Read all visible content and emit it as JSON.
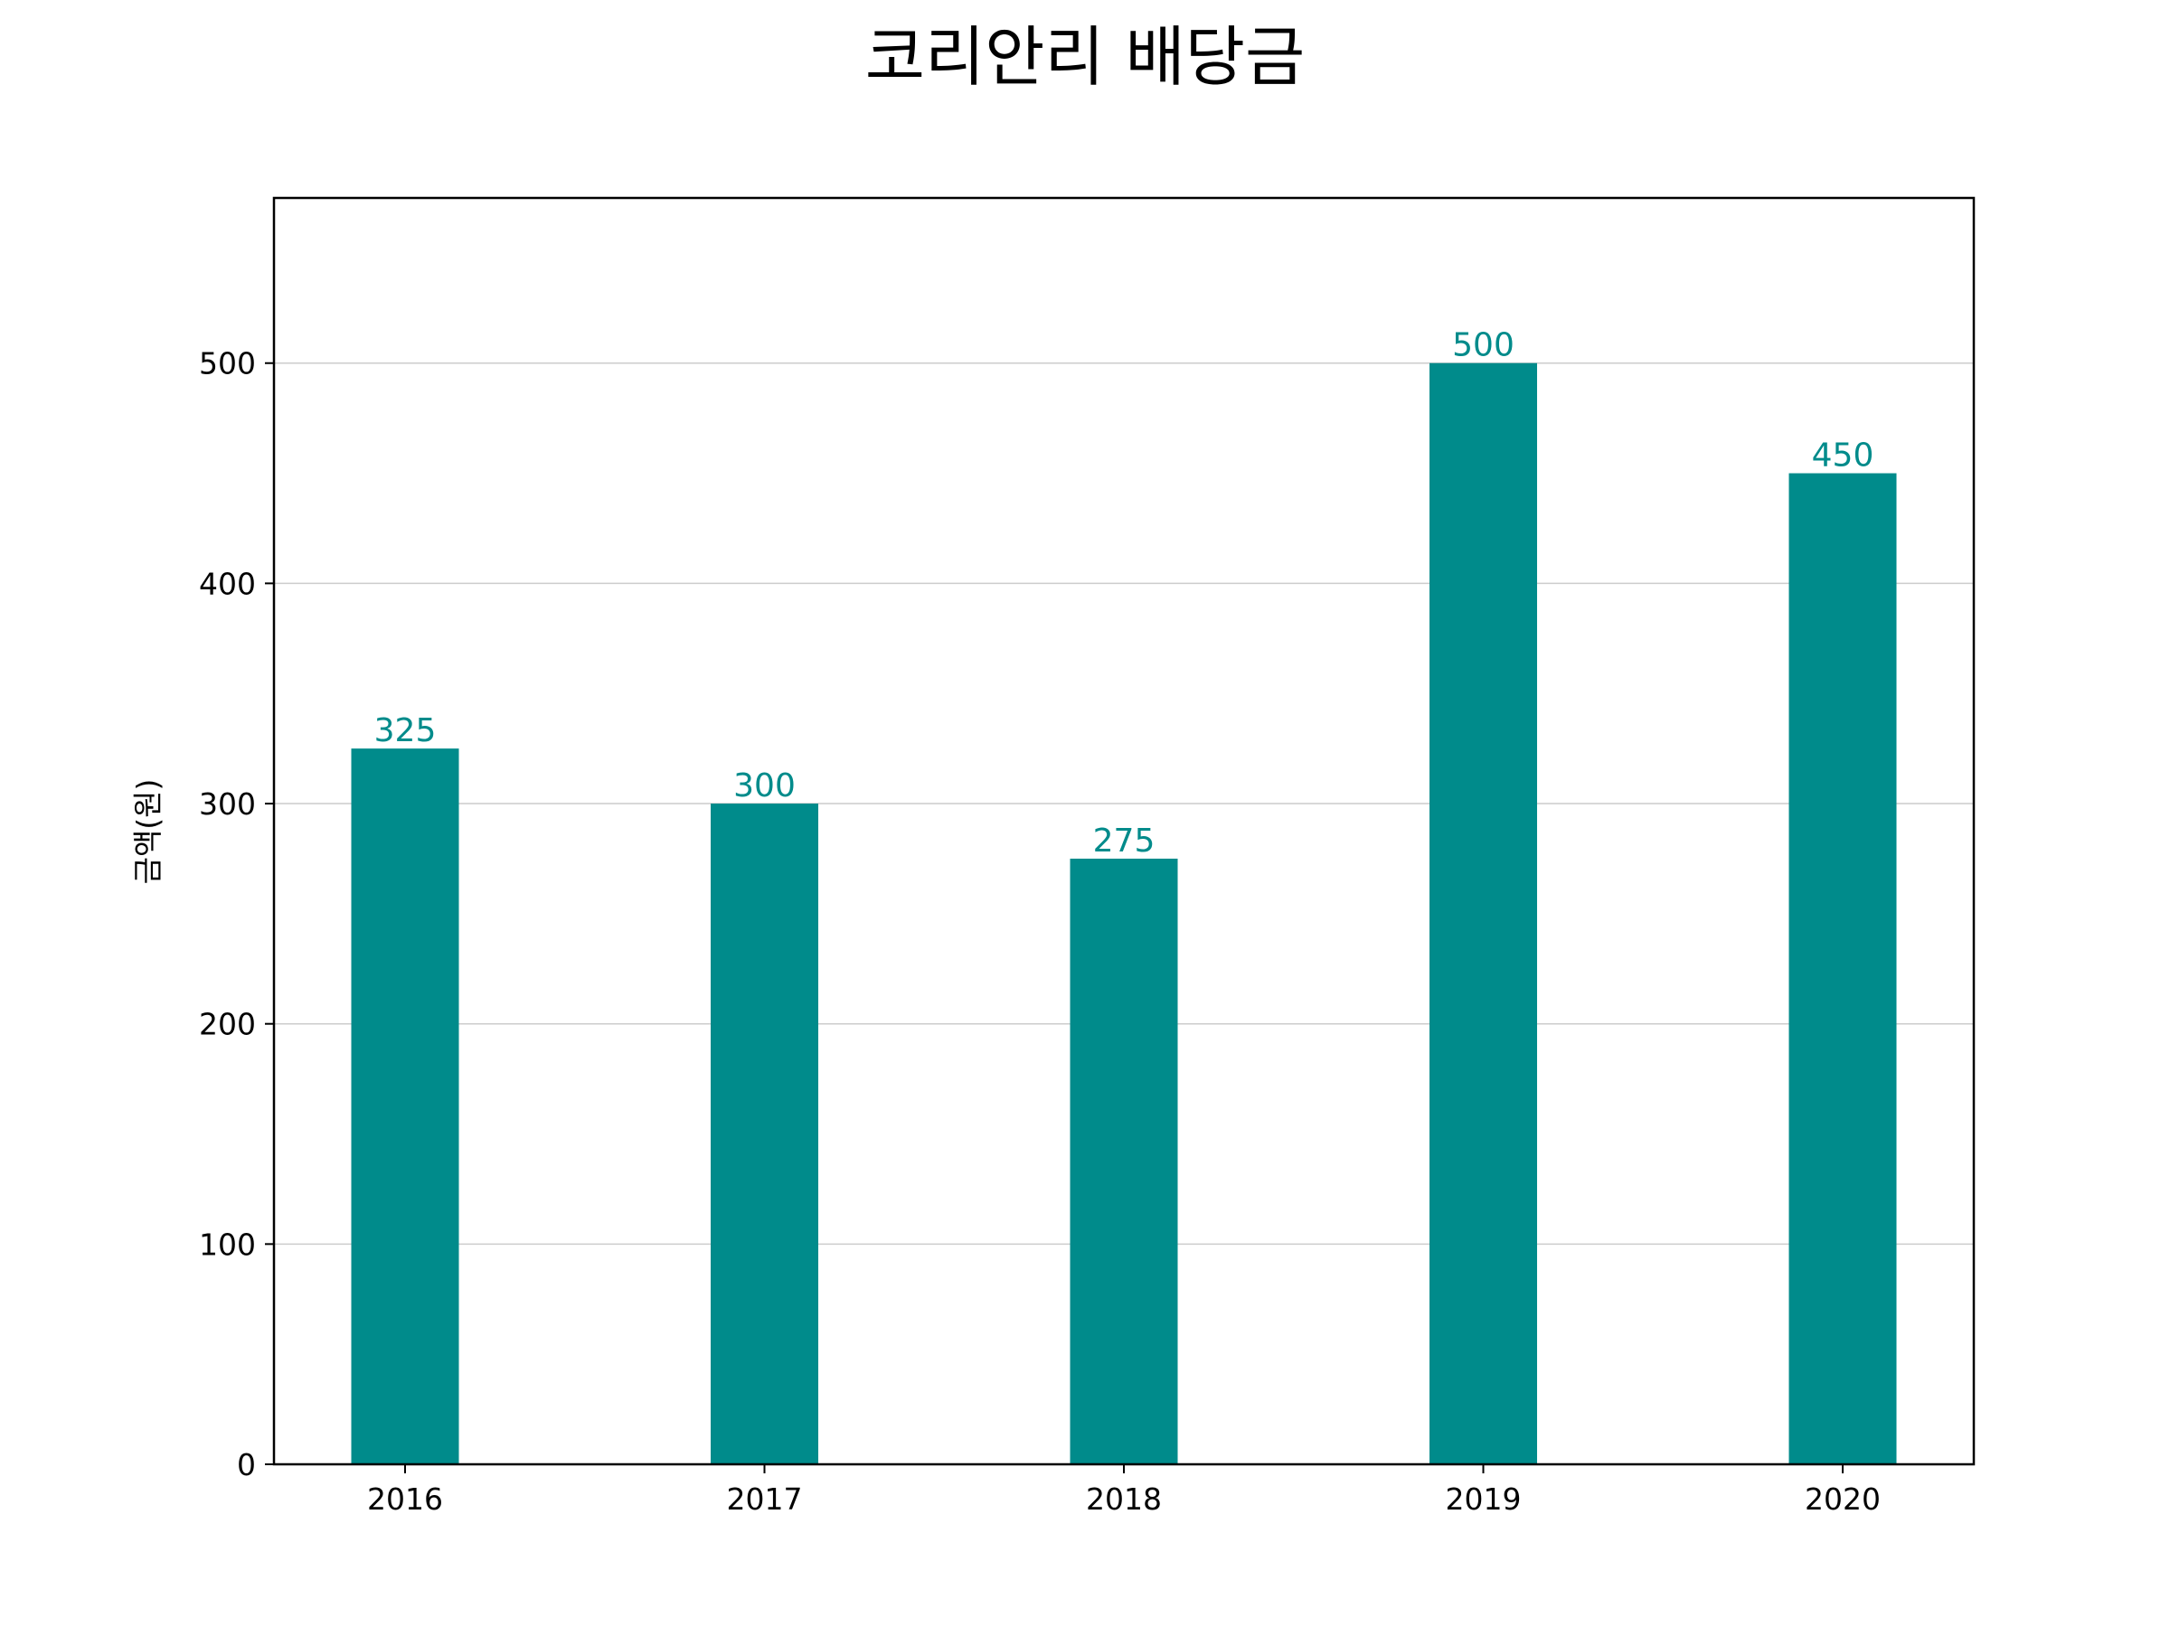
{
  "chart_data": {
    "type": "bar",
    "title": "코리안리 배당금",
    "xlabel": "",
    "ylabel": "금액(원)",
    "categories": [
      "2016",
      "2017",
      "2018",
      "2019",
      "2020"
    ],
    "values": [
      325,
      300,
      275,
      500,
      450
    ],
    "data_labels": [
      "325",
      "300",
      "275",
      "500",
      "450"
    ],
    "ylim": [
      0,
      575
    ],
    "yticks": [
      0,
      100,
      200,
      300,
      400,
      500
    ],
    "ytick_labels": [
      "0",
      "100",
      "200",
      "300",
      "400",
      "500"
    ],
    "grid": "horizontal",
    "bar_color": "#008b8b",
    "label_color": "#008b8b",
    "grid_color": "#cccccc"
  }
}
